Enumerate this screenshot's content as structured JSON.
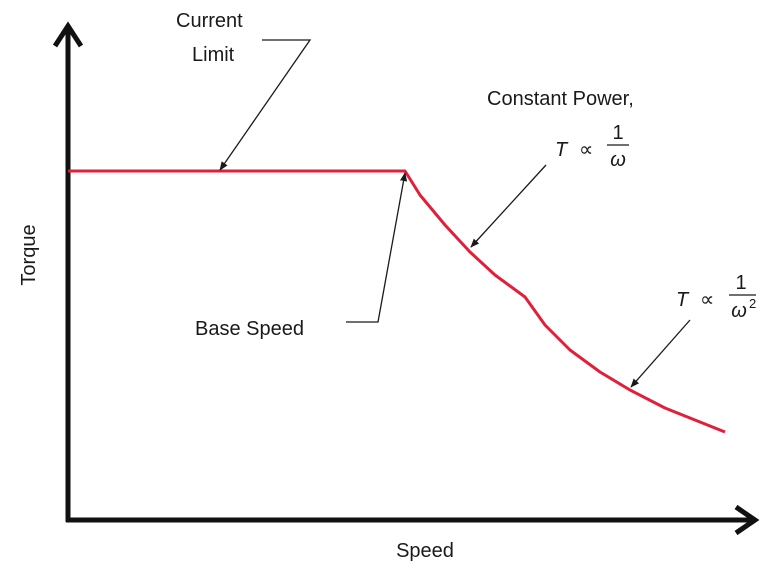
{
  "axes": {
    "y_label": "Torque",
    "x_label": "Speed"
  },
  "annotations": {
    "current_limit": [
      "Current",
      "Limit"
    ],
    "base_speed": "Base Speed",
    "constant_power": {
      "text": "Constant Power,",
      "symbol": "T",
      "relation": "∝",
      "numerator": "1",
      "denominator": "ω"
    },
    "high_speed": {
      "symbol": "T",
      "relation": "∝",
      "numerator": "1",
      "denominator": "ω",
      "exponent": "2"
    }
  }
}
